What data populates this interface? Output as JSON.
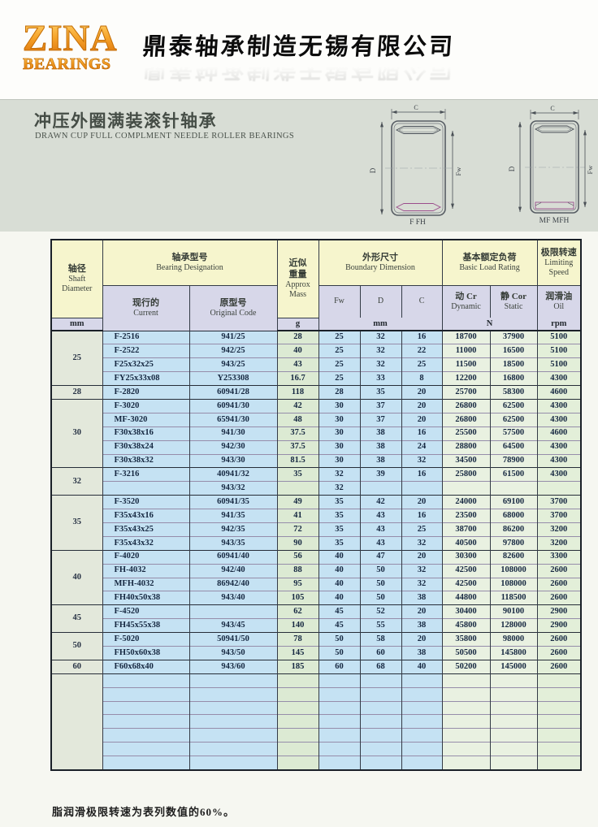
{
  "brand": {
    "logo_line1": "ZINA",
    "logo_line2": "BEARINGS",
    "company_name": "鼎泰轴承制造无锡有限公司",
    "accent_color": "#ef9820"
  },
  "section": {
    "title_zh": "冲压外圈满装滚针轴承",
    "title_en": "DRAWN CUP FULL COMPLMENT NEEDLE ROLLER BEARINGS"
  },
  "diagrams": {
    "dim_c": "C",
    "dim_d": "D",
    "dim_fw": "Fw",
    "left_label": "F FH",
    "right_label": "MF MFH"
  },
  "table": {
    "header": {
      "shaft_zh": "轴径",
      "shaft_en1": "Shaft",
      "shaft_en2": "Diameter",
      "designation_zh": "轴承型号",
      "designation_en": "Bearing Designation",
      "current_zh": "现行的",
      "current_en": "Current",
      "original_zh": "原型号",
      "original_en": "Original Code",
      "mass_zh1": "近似",
      "mass_zh2": "重量",
      "mass_en1": "Approx",
      "mass_en2": "Mass",
      "boundary_zh": "外形尺寸",
      "boundary_en": "Boundary Dimension",
      "col_fw": "Fw",
      "col_d": "D",
      "col_c": "C",
      "load_zh": "基本额定负荷",
      "load_en": "Basic Load Rating",
      "dynamic_zh": "动 Cr",
      "dynamic_en": "Dynamic",
      "static_zh": "静 Cor",
      "static_en": "Static",
      "speed_zh": "极限转速",
      "speed_en1": "Limiting",
      "speed_en2": "Speed",
      "oil_zh": "润滑油",
      "oil_en": "Oil",
      "unit_mm": "mm",
      "unit_g": "g",
      "unit_mm2": "mm",
      "unit_n": "N",
      "unit_rpm": "rpm"
    },
    "groups": [
      {
        "shaft": "25",
        "rows": [
          [
            "F-2516",
            "941/25",
            "28",
            "25",
            "32",
            "16",
            "18700",
            "37900",
            "5100"
          ],
          [
            "F-2522",
            "942/25",
            "40",
            "25",
            "32",
            "22",
            "11000",
            "16500",
            "5100"
          ],
          [
            "F25x32x25",
            "943/25",
            "43",
            "25",
            "32",
            "25",
            "11500",
            "18500",
            "5100"
          ],
          [
            "FY25x33x08",
            "Y253308",
            "16.7",
            "25",
            "33",
            "8",
            "12200",
            "16800",
            "4300"
          ]
        ]
      },
      {
        "shaft": "28",
        "rows": [
          [
            "F-2820",
            "60941/28",
            "118",
            "28",
            "35",
            "20",
            "25700",
            "58300",
            "4600"
          ]
        ]
      },
      {
        "shaft": "30",
        "rows": [
          [
            "F-3020",
            "60941/30",
            "42",
            "30",
            "37",
            "20",
            "26800",
            "62500",
            "4300"
          ],
          [
            "MF-3020",
            "65941/30",
            "48",
            "30",
            "37",
            "20",
            "26800",
            "62500",
            "4300"
          ],
          [
            "F30x38x16",
            "941/30",
            "37.5",
            "30",
            "38",
            "16",
            "25500",
            "57500",
            "4600"
          ],
          [
            "F30x38x24",
            "942/30",
            "37.5",
            "30",
            "38",
            "24",
            "28800",
            "64500",
            "4300"
          ],
          [
            "F30x38x32",
            "943/30",
            "81.5",
            "30",
            "38",
            "32",
            "34500",
            "78900",
            "4300"
          ]
        ]
      },
      {
        "shaft": "32",
        "rows": [
          [
            "F-3216",
            "40941/32",
            "35",
            "32",
            "39",
            "16",
            "25800",
            "61500",
            "4300"
          ],
          [
            "",
            "943/32",
            "",
            "32",
            "",
            "",
            "",
            "",
            ""
          ]
        ]
      },
      {
        "shaft": "35",
        "rows": [
          [
            "F-3520",
            "60941/35",
            "49",
            "35",
            "42",
            "20",
            "24000",
            "69100",
            "3700"
          ],
          [
            "F35x43x16",
            "941/35",
            "41",
            "35",
            "43",
            "16",
            "23500",
            "68000",
            "3700"
          ],
          [
            "F35x43x25",
            "942/35",
            "72",
            "35",
            "43",
            "25",
            "38700",
            "86200",
            "3200"
          ],
          [
            "F35x43x32",
            "943/35",
            "90",
            "35",
            "43",
            "32",
            "40500",
            "97800",
            "3200"
          ]
        ]
      },
      {
        "shaft": "40",
        "rows": [
          [
            "F-4020",
            "60941/40",
            "56",
            "40",
            "47",
            "20",
            "30300",
            "82600",
            "3300"
          ],
          [
            "FH-4032",
            "942/40",
            "88",
            "40",
            "50",
            "32",
            "42500",
            "108000",
            "2600"
          ],
          [
            "MFH-4032",
            "86942/40",
            "95",
            "40",
            "50",
            "32",
            "42500",
            "108000",
            "2600"
          ],
          [
            "FH40x50x38",
            "943/40",
            "105",
            "40",
            "50",
            "38",
            "44800",
            "118500",
            "2600"
          ]
        ]
      },
      {
        "shaft": "45",
        "rows": [
          [
            "F-4520",
            "",
            "62",
            "45",
            "52",
            "20",
            "30400",
            "90100",
            "2900"
          ],
          [
            "FH45x55x38",
            "943/45",
            "140",
            "45",
            "55",
            "38",
            "45800",
            "128000",
            "2900"
          ]
        ]
      },
      {
        "shaft": "50",
        "rows": [
          [
            "F-5020",
            "50941/50",
            "78",
            "50",
            "58",
            "20",
            "35800",
            "98000",
            "2600"
          ],
          [
            "FH50x60x38",
            "943/50",
            "145",
            "50",
            "60",
            "38",
            "50500",
            "145800",
            "2600"
          ]
        ]
      },
      {
        "shaft": "60",
        "rows": [
          [
            "F60x68x40",
            "943/60",
            "185",
            "60",
            "68",
            "40",
            "50200",
            "145000",
            "2600"
          ]
        ]
      }
    ],
    "empty_rows": 7
  },
  "footer": {
    "note": "脂润滑极限转速为表列数值的60%。"
  },
  "colors": {
    "band_bg": "#d8ddd5",
    "header_yellow": "#f6f5cd",
    "header_lavender": "#d7d7e9",
    "cell_blue": "#c5e2f3",
    "cell_green_mass": "#dcead3",
    "cell_green_load": "#e9f1e1",
    "cell_green_oil": "#e3efd9",
    "shaft_col": "#e3e8db"
  }
}
